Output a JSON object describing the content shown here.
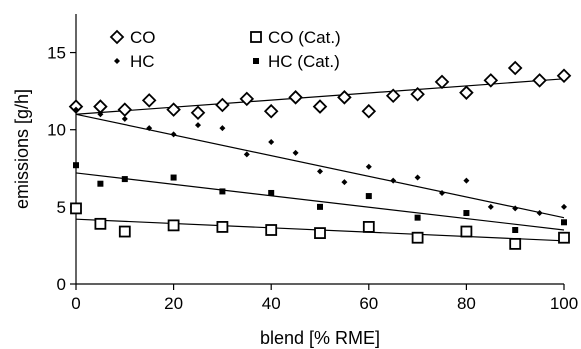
{
  "chart_data": {
    "type": "scatter",
    "xlabel": "blend [% RME]",
    "ylabel": "emissions [g/h]",
    "xlim": [
      0,
      100
    ],
    "ylim": [
      0,
      17.5
    ],
    "xticks": [
      0,
      20,
      40,
      60,
      80,
      100
    ],
    "yticks": [
      0,
      5,
      10,
      15
    ],
    "grid": false,
    "legend_position": "top-left",
    "series": [
      {
        "name": "CO",
        "marker": "open-diamond",
        "x": [
          0,
          5,
          10,
          15,
          20,
          25,
          30,
          35,
          40,
          45,
          50,
          55,
          60,
          65,
          70,
          75,
          80,
          85,
          90,
          95,
          100
        ],
        "y": [
          11.5,
          11.5,
          11.3,
          11.9,
          11.3,
          11.1,
          11.6,
          12.0,
          11.2,
          12.1,
          11.5,
          12.1,
          11.2,
          12.2,
          12.3,
          13.1,
          12.4,
          13.2,
          14.0,
          13.2,
          13.5
        ],
        "trend": [
          11.0,
          13.3
        ]
      },
      {
        "name": "HC",
        "marker": "small-filled-diamond",
        "x": [
          0,
          5,
          10,
          15,
          20,
          25,
          30,
          35,
          40,
          45,
          50,
          55,
          60,
          65,
          70,
          75,
          80,
          85,
          90,
          95,
          100
        ],
        "y": [
          11.3,
          11.0,
          10.7,
          10.1,
          9.7,
          10.3,
          10.1,
          8.4,
          9.2,
          8.5,
          7.3,
          6.6,
          7.6,
          6.7,
          6.9,
          5.9,
          6.7,
          5.0,
          4.9,
          4.6,
          5.0
        ],
        "trend": [
          11.0,
          4.3
        ]
      },
      {
        "name": "CO (Cat.)",
        "marker": "open-square",
        "x": [
          0,
          5,
          10,
          20,
          30,
          40,
          50,
          60,
          70,
          80,
          90,
          100
        ],
        "y": [
          4.9,
          3.9,
          3.4,
          3.8,
          3.7,
          3.5,
          3.3,
          3.7,
          3.0,
          3.4,
          2.6,
          3.0
        ],
        "trend": [
          4.2,
          2.8
        ]
      },
      {
        "name": "HC (Cat.)",
        "marker": "filled-square",
        "x": [
          0,
          5,
          10,
          20,
          30,
          40,
          50,
          60,
          70,
          80,
          90,
          100
        ],
        "y": [
          7.7,
          6.5,
          6.8,
          6.9,
          6.0,
          5.9,
          5.0,
          5.7,
          4.3,
          4.6,
          3.5,
          4.0
        ],
        "trend": [
          7.2,
          3.5
        ]
      }
    ],
    "colors": {
      "markers": "#000000",
      "axes": "#000000",
      "background": "#ffffff"
    }
  }
}
